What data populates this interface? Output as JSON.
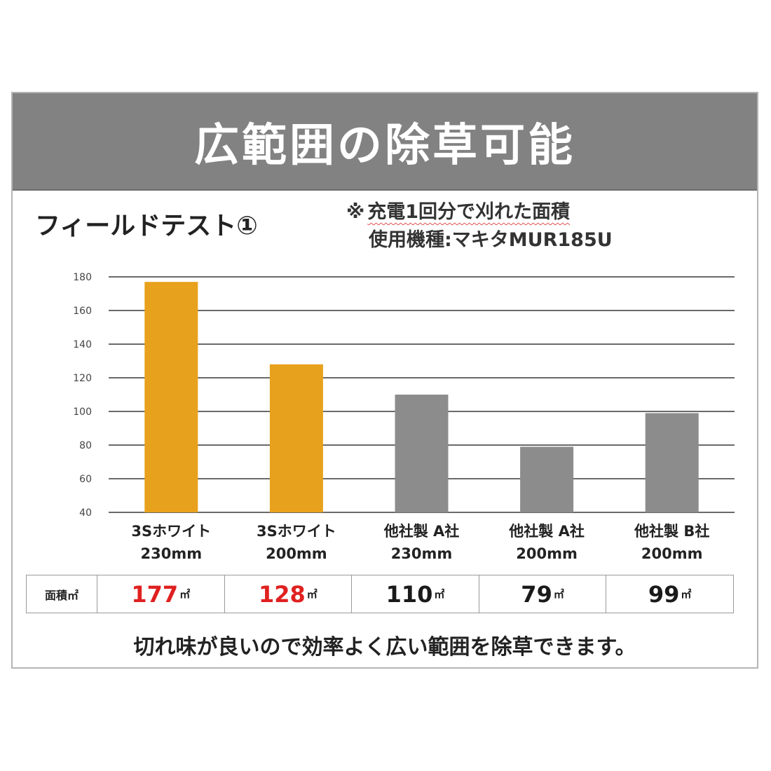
{
  "banner": {
    "title": "広範囲の除草可能"
  },
  "field_test_title": "フィールドテスト①",
  "note": {
    "mark": "※",
    "line1": "充電1回分で刈れた面積",
    "line2": "使用機種:マキタMUR185U"
  },
  "table": {
    "header": "面積㎡",
    "unit": "㎡",
    "values": [
      "177",
      "128",
      "110",
      "79",
      "99"
    ],
    "colors": [
      "#e02020",
      "#e02020",
      "#1a1a1a",
      "#1a1a1a",
      "#1a1a1a"
    ]
  },
  "footer": "切れ味が良いので効率よく広い範囲を除草できます。",
  "colors": {
    "brand_bar": "#e8a11c",
    "other_bar": "#8c8c8c",
    "banner_bg": "#828282",
    "highlight_text": "#e02020"
  },
  "chart_data": {
    "type": "bar",
    "categories": [
      [
        "3Sホワイト",
        "230mm"
      ],
      [
        "3Sホワイト",
        "200mm"
      ],
      [
        "他社製 A社",
        "230mm"
      ],
      [
        "他社製 A社",
        "200mm"
      ],
      [
        "他社製 B社",
        "200mm"
      ]
    ],
    "values": [
      177,
      128,
      110,
      79,
      99
    ],
    "bar_colors": [
      "#e8a11c",
      "#e8a11c",
      "#8c8c8c",
      "#8c8c8c",
      "#8c8c8c"
    ],
    "ylim": [
      40,
      180
    ],
    "yticks": [
      40,
      60,
      80,
      100,
      120,
      140,
      160,
      180
    ],
    "grid": true,
    "title": "",
    "xlabel": "",
    "ylabel": ""
  }
}
